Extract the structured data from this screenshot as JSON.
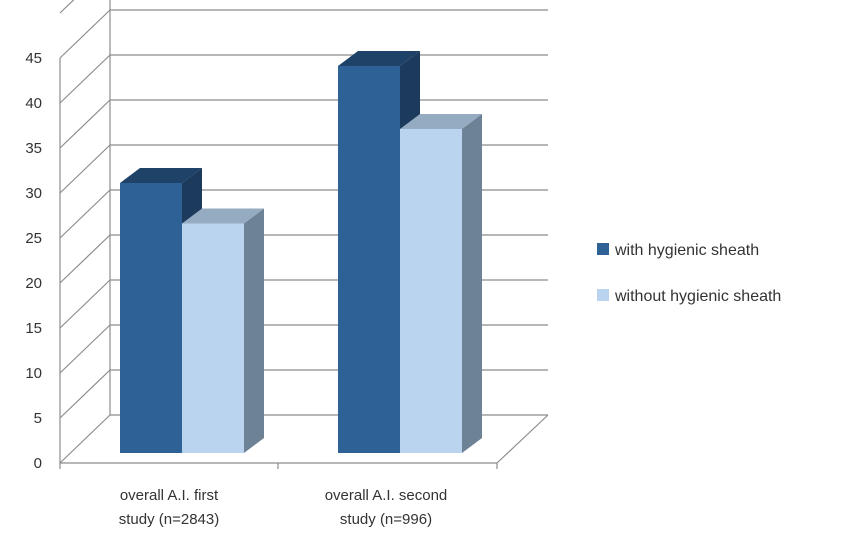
{
  "chart_data": {
    "type": "bar",
    "style": "3d-clustered-column",
    "categories": [
      [
        "overall A.I. first",
        "study (n=2843)"
      ],
      [
        "overall A.I. second",
        "study (n=996)"
      ]
    ],
    "series": [
      {
        "name": "with hygienic sheath",
        "values": [
          30,
          43
        ]
      },
      {
        "name": "without hygienic sheath",
        "values": [
          25.5,
          36
        ]
      }
    ],
    "y_ticks": [
      "0",
      "5",
      "10",
      "15",
      "20",
      "25",
      "30",
      "35",
      "40",
      "45"
    ],
    "ylim": [
      0,
      45
    ],
    "grid": true,
    "legend_position": "right",
    "colors": {
      "series_front": [
        "#2E6195",
        "#BAD4EF"
      ],
      "series_side": [
        "#1B3A5C",
        "#6E8296"
      ],
      "series_top": [
        "#1F4268",
        "#94ABC2"
      ],
      "grid": "#8C8C8C",
      "axis": "#8C8C8C"
    }
  }
}
